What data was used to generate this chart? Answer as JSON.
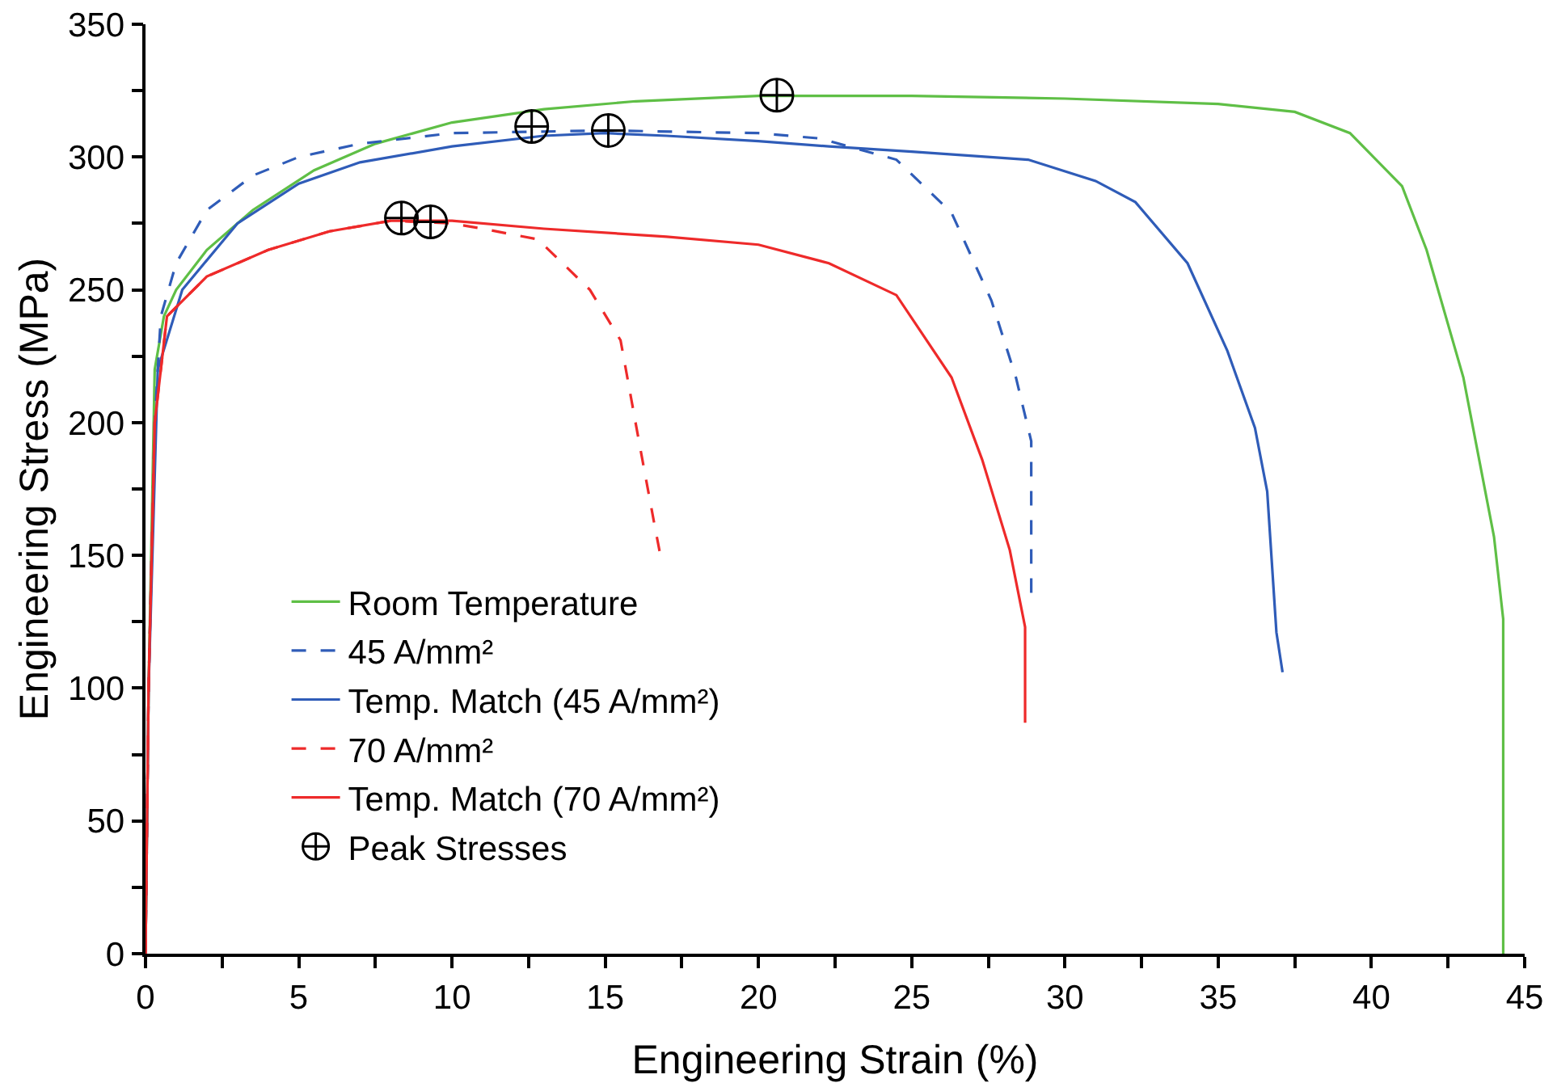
{
  "chart_data": {
    "type": "line",
    "xlabel": "Engineering Strain (%)",
    "ylabel": "Engineering Stress (MPa)",
    "xlim": [
      0,
      45
    ],
    "ylim": [
      0,
      350
    ],
    "xticks": [
      0,
      {
        "value": 2.5,
        "label": null
      },
      5,
      {
        "value": 7.5,
        "label": null
      },
      10,
      {
        "value": 12.5,
        "label": null
      },
      15,
      {
        "value": 17.5,
        "label": null
      },
      20,
      {
        "value": 22.5,
        "label": null
      },
      25,
      {
        "value": 27.5,
        "label": null
      },
      30,
      {
        "value": 32.5,
        "label": null
      },
      35,
      {
        "value": 37.5,
        "label": null
      },
      40,
      {
        "value": 42.5,
        "label": null
      },
      45
    ],
    "yticks": [
      0,
      {
        "value": 25,
        "label": null
      },
      50,
      {
        "value": 75,
        "label": null
      },
      100,
      {
        "value": 125,
        "label": null
      },
      150,
      {
        "value": 175,
        "label": null
      },
      200,
      {
        "value": 225,
        "label": null
      },
      250,
      {
        "value": 275,
        "label": null
      },
      300,
      {
        "value": 325,
        "label": null
      },
      350
    ],
    "grid": false,
    "legend": "bottom left",
    "marker": "none",
    "series": [
      {
        "name": "Room Temperature",
        "color": "#5fbf46",
        "line_style": "solid",
        "x": [
          0,
          0.1,
          0.3,
          0.6,
          1,
          2,
          3.5,
          5.5,
          7.5,
          10,
          13,
          16,
          20,
          25,
          30,
          35,
          37.5,
          39.3,
          41,
          41.8,
          43,
          44,
          44.3,
          44.3
        ],
        "values": [
          0,
          100,
          220,
          240,
          250,
          265,
          280,
          295,
          305,
          313,
          318,
          321,
          323,
          323,
          322,
          320,
          317,
          309,
          289,
          265,
          217,
          157,
          126,
          0
        ]
      },
      {
        "name": "45 A/mm²",
        "color": "#2f5cb8",
        "line_style": "dashed",
        "x": [
          0,
          0.1,
          0.3,
          0.5,
          1,
          2,
          3.5,
          5,
          7,
          10,
          15,
          20,
          22,
          24.5,
          26.3,
          27.6,
          28.4,
          28.9,
          28.9
        ],
        "values": [
          0,
          100,
          200,
          240,
          260,
          280,
          293,
          300,
          305,
          309,
          310,
          309,
          307,
          299,
          279,
          246,
          217,
          193,
          135
        ]
      },
      {
        "name": "Temp. Match (45 A/mm²)",
        "color": "#2f5cb8",
        "line_style": "solid",
        "x": [
          0,
          0.1,
          0.4,
          1.2,
          3,
          5,
          7,
          10,
          13,
          15,
          17,
          20,
          22.3,
          25,
          28.8,
          31,
          32.3,
          34,
          35.3,
          36.2,
          36.6,
          36.9,
          37.1
        ],
        "values": [
          0,
          100,
          220,
          250,
          275,
          290,
          298,
          304,
          308,
          309,
          308,
          306,
          304,
          302,
          299,
          291,
          283,
          260,
          227,
          198,
          174,
          121,
          106
        ]
      },
      {
        "name": "70 A/mm²",
        "color": "#ee2a2a",
        "line_style": "dashed",
        "x": [
          0,
          0.1,
          0.3,
          0.7,
          2,
          4,
          6,
          8,
          10,
          11,
          12.8,
          14.5,
          15.5,
          16.1,
          16.6,
          16.8
        ],
        "values": [
          0,
          100,
          200,
          240,
          255,
          265,
          272,
          276,
          275,
          273,
          269,
          250,
          231,
          193,
          162,
          150
        ]
      },
      {
        "name": "Temp. Match (70 A/mm²)",
        "color": "#ee2a2a",
        "line_style": "solid",
        "x": [
          0,
          0.1,
          0.3,
          0.7,
          2,
          4,
          6,
          8,
          10,
          13,
          17,
          20,
          22.3,
          24.5,
          26.3,
          27.3,
          28.2,
          28.7,
          28.7
        ],
        "values": [
          0,
          100,
          200,
          240,
          255,
          265,
          272,
          276,
          276,
          273,
          270,
          267,
          260,
          248,
          217,
          186,
          152,
          123,
          87
        ]
      },
      {
        "name": "Peak Stresses",
        "type": "scatter",
        "marker": "cross",
        "color": "#000000",
        "x": [
          8.35,
          9.3,
          12.6,
          15.1,
          20.6
        ],
        "values": [
          277,
          275.6,
          311.5,
          310,
          323.3
        ]
      }
    ]
  }
}
